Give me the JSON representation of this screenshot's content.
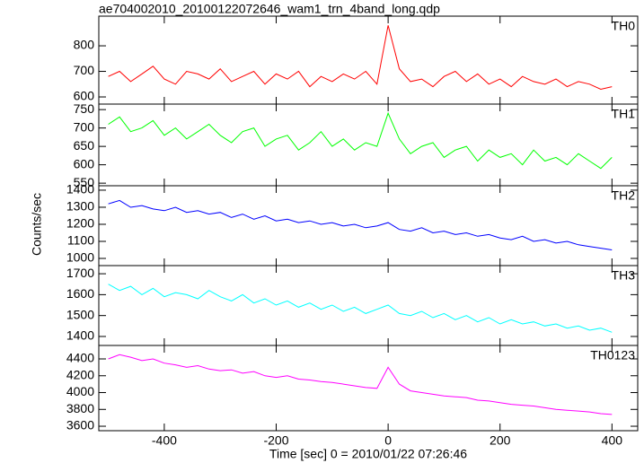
{
  "chart_data": [
    {
      "type": "line",
      "title": "ae704002010_20100122072646_wam1_trn_4band_long.qdp",
      "label": "TH0",
      "color": "#ff0000",
      "x": [
        -500,
        -480,
        -460,
        -440,
        -420,
        -400,
        -380,
        -360,
        -340,
        -320,
        -300,
        -280,
        -260,
        -240,
        -220,
        -200,
        -180,
        -160,
        -140,
        -120,
        -100,
        -80,
        -60,
        -40,
        -20,
        0,
        20,
        40,
        60,
        80,
        100,
        120,
        140,
        160,
        180,
        200,
        220,
        240,
        260,
        280,
        300,
        320,
        340,
        360,
        380,
        400
      ],
      "values": [
        680,
        700,
        660,
        690,
        720,
        670,
        650,
        700,
        690,
        670,
        710,
        660,
        680,
        700,
        650,
        690,
        670,
        700,
        640,
        680,
        660,
        690,
        670,
        700,
        650,
        880,
        710,
        660,
        670,
        640,
        680,
        700,
        660,
        690,
        650,
        670,
        640,
        680,
        660,
        650,
        670,
        640,
        660,
        650,
        630,
        640
      ],
      "xlim": [
        -517,
        446
      ],
      "xticks": [
        -400,
        -200,
        0,
        200,
        400
      ],
      "ylim": [
        572,
        916
      ],
      "yticks": [
        600,
        700,
        800
      ]
    },
    {
      "type": "line",
      "label": "TH1",
      "color": "#00ff00",
      "x": [
        -500,
        -480,
        -460,
        -440,
        -420,
        -400,
        -380,
        -360,
        -340,
        -320,
        -300,
        -280,
        -260,
        -240,
        -220,
        -200,
        -180,
        -160,
        -140,
        -120,
        -100,
        -80,
        -60,
        -40,
        -20,
        0,
        20,
        40,
        60,
        80,
        100,
        120,
        140,
        160,
        180,
        200,
        220,
        240,
        260,
        280,
        300,
        320,
        340,
        360,
        380,
        400
      ],
      "values": [
        710,
        730,
        690,
        700,
        720,
        680,
        700,
        670,
        690,
        710,
        680,
        660,
        690,
        700,
        650,
        670,
        680,
        640,
        660,
        690,
        650,
        670,
        640,
        660,
        650,
        740,
        670,
        630,
        650,
        660,
        620,
        640,
        650,
        610,
        640,
        620,
        630,
        600,
        640,
        610,
        620,
        600,
        630,
        610,
        590,
        620
      ],
      "xlim": [
        -517,
        446
      ],
      "xticks": [
        -400,
        -200,
        0,
        200,
        400
      ],
      "ylim": [
        543,
        765
      ],
      "yticks": [
        550,
        600,
        650,
        700,
        750
      ]
    },
    {
      "type": "line",
      "label": "TH2",
      "color": "#0000ff",
      "ylabel": "Counts/sec",
      "x": [
        -500,
        -480,
        -460,
        -440,
        -420,
        -400,
        -380,
        -360,
        -340,
        -320,
        -300,
        -280,
        -260,
        -240,
        -220,
        -200,
        -180,
        -160,
        -140,
        -120,
        -100,
        -80,
        -60,
        -40,
        -20,
        0,
        20,
        40,
        60,
        80,
        100,
        120,
        140,
        160,
        180,
        200,
        220,
        240,
        260,
        280,
        300,
        320,
        340,
        360,
        380,
        400
      ],
      "values": [
        1320,
        1340,
        1300,
        1310,
        1290,
        1280,
        1300,
        1270,
        1280,
        1260,
        1270,
        1240,
        1260,
        1230,
        1250,
        1220,
        1230,
        1210,
        1220,
        1200,
        1210,
        1190,
        1200,
        1180,
        1190,
        1210,
        1170,
        1160,
        1180,
        1150,
        1160,
        1140,
        1150,
        1130,
        1140,
        1120,
        1110,
        1130,
        1100,
        1110,
        1090,
        1100,
        1080,
        1070,
        1060,
        1050
      ],
      "xlim": [
        -517,
        446
      ],
      "xticks": [
        -400,
        -200,
        0,
        200,
        400
      ],
      "ylim": [
        958,
        1426
      ],
      "yticks": [
        1000,
        1100,
        1200,
        1300,
        1400
      ]
    },
    {
      "type": "line",
      "label": "TH3",
      "color": "#00ffff",
      "x": [
        -500,
        -480,
        -460,
        -440,
        -420,
        -400,
        -380,
        -360,
        -340,
        -320,
        -300,
        -280,
        -260,
        -240,
        -220,
        -200,
        -180,
        -160,
        -140,
        -120,
        -100,
        -80,
        -60,
        -40,
        -20,
        0,
        20,
        40,
        60,
        80,
        100,
        120,
        140,
        160,
        180,
        200,
        220,
        240,
        260,
        280,
        300,
        320,
        340,
        360,
        380,
        400
      ],
      "values": [
        1650,
        1620,
        1640,
        1600,
        1630,
        1590,
        1610,
        1600,
        1580,
        1620,
        1590,
        1570,
        1600,
        1560,
        1580,
        1550,
        1570,
        1540,
        1560,
        1530,
        1550,
        1520,
        1540,
        1510,
        1530,
        1550,
        1510,
        1500,
        1520,
        1490,
        1510,
        1480,
        1500,
        1470,
        1490,
        1460,
        1480,
        1460,
        1470,
        1450,
        1460,
        1440,
        1450,
        1430,
        1440,
        1420
      ],
      "xlim": [
        -517,
        446
      ],
      "xticks": [
        -400,
        -200,
        0,
        200,
        400
      ],
      "ylim": [
        1357,
        1739
      ],
      "yticks": [
        1400,
        1500,
        1600,
        1700
      ]
    },
    {
      "type": "line",
      "label": "TH0123",
      "color": "#ff00ff",
      "xlabel": "Time [sec] 0 = 2010/01/22 07:26:46",
      "x": [
        -500,
        -480,
        -460,
        -440,
        -420,
        -400,
        -380,
        -360,
        -340,
        -320,
        -300,
        -280,
        -260,
        -240,
        -220,
        -200,
        -180,
        -160,
        -140,
        -120,
        -100,
        -80,
        -60,
        -40,
        -20,
        0,
        20,
        40,
        60,
        80,
        100,
        120,
        140,
        160,
        180,
        200,
        220,
        240,
        260,
        280,
        300,
        320,
        340,
        360,
        380,
        400
      ],
      "values": [
        4400,
        4450,
        4420,
        4380,
        4400,
        4350,
        4330,
        4300,
        4320,
        4280,
        4260,
        4270,
        4230,
        4250,
        4200,
        4180,
        4200,
        4160,
        4150,
        4130,
        4120,
        4100,
        4080,
        4060,
        4050,
        4300,
        4100,
        4020,
        4000,
        3980,
        3960,
        3950,
        3940,
        3910,
        3900,
        3880,
        3860,
        3850,
        3840,
        3820,
        3800,
        3790,
        3780,
        3770,
        3750,
        3740
      ],
      "xlim": [
        -517,
        446
      ],
      "xticks": [
        -400,
        -200,
        0,
        200,
        400
      ],
      "ylim": [
        3547,
        4560
      ],
      "yticks": [
        3600,
        3800,
        4000,
        4200,
        4400
      ]
    }
  ]
}
